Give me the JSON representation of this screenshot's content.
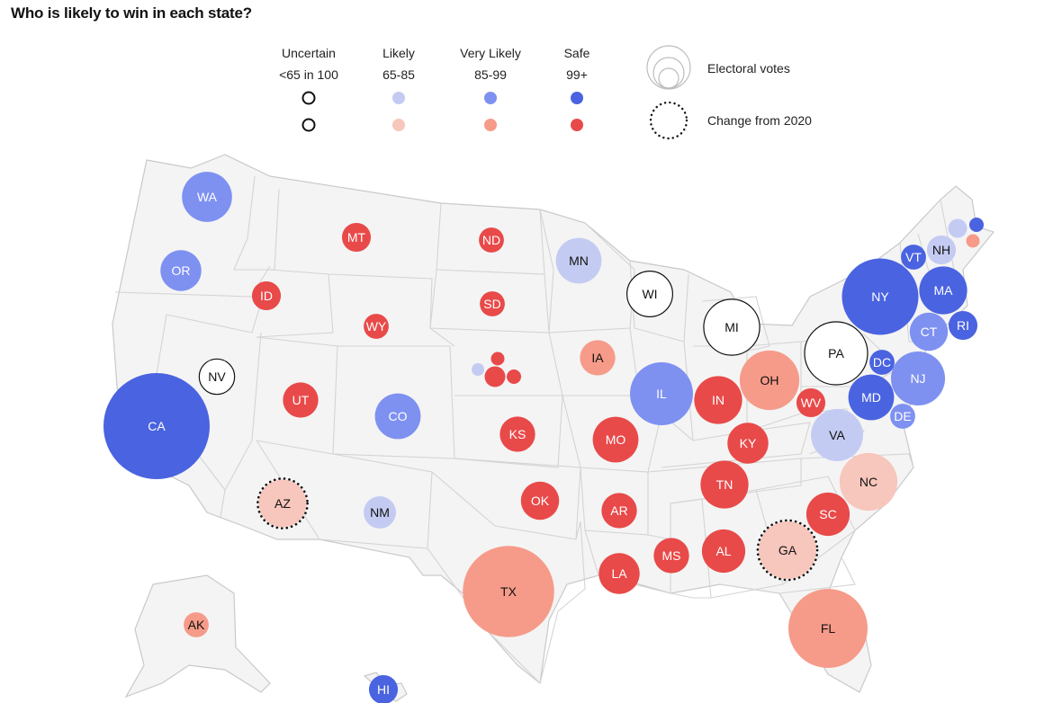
{
  "title": "Who is likely to win in each state?",
  "colors": {
    "background": "#ffffff",
    "land": "#f4f4f4",
    "border": "#c9c9c9",
    "uncertain_fill": "#ffffff",
    "uncertain_stroke": "#111111",
    "dem_likely": "#c4cbf3",
    "dem_very_likely": "#7e91f1",
    "dem_safe": "#4a63e0",
    "rep_likely": "#f7c6bc",
    "rep_very_likely": "#f69b89",
    "rep_safe": "#e84a49"
  },
  "legend": {
    "categories": [
      {
        "label": "Uncertain",
        "range": "<65 in 100",
        "dem_color": "uncertain",
        "rep_color": "uncertain"
      },
      {
        "label": "Likely",
        "range": "65-85",
        "dem_color": "dem_likely",
        "rep_color": "rep_likely"
      },
      {
        "label": "Very Likely",
        "range": "85-99",
        "dem_color": "dem_very_likely",
        "rep_color": "rep_very_likely"
      },
      {
        "label": "Safe",
        "range": "99+",
        "dem_color": "dem_safe",
        "rep_color": "rep_safe"
      }
    ],
    "electoral_votes_label": "Electoral votes",
    "change_label": "Change from 2020"
  },
  "states": [
    {
      "abbr": "WA",
      "rating": "dem_very_likely",
      "ev": 12,
      "changed": false
    },
    {
      "abbr": "OR",
      "rating": "dem_very_likely",
      "ev": 8,
      "changed": false
    },
    {
      "abbr": "CA",
      "rating": "dem_safe",
      "ev": 54,
      "changed": false
    },
    {
      "abbr": "NV",
      "rating": "uncertain",
      "ev": 6,
      "changed": false
    },
    {
      "abbr": "ID",
      "rating": "rep_safe",
      "ev": 4,
      "changed": false
    },
    {
      "abbr": "MT",
      "rating": "rep_safe",
      "ev": 4,
      "changed": false
    },
    {
      "abbr": "WY",
      "rating": "rep_safe",
      "ev": 3,
      "changed": false
    },
    {
      "abbr": "UT",
      "rating": "rep_safe",
      "ev": 6,
      "changed": false
    },
    {
      "abbr": "AZ",
      "rating": "rep_likely",
      "ev": 11,
      "changed": true
    },
    {
      "abbr": "CO",
      "rating": "dem_very_likely",
      "ev": 10,
      "changed": false
    },
    {
      "abbr": "NM",
      "rating": "dem_likely",
      "ev": 5,
      "changed": false
    },
    {
      "abbr": "ND",
      "rating": "rep_safe",
      "ev": 3,
      "changed": false
    },
    {
      "abbr": "SD",
      "rating": "rep_safe",
      "ev": 3,
      "changed": false
    },
    {
      "abbr": "KS",
      "rating": "rep_safe",
      "ev": 6,
      "changed": false
    },
    {
      "abbr": "OK",
      "rating": "rep_safe",
      "ev": 7,
      "changed": false
    },
    {
      "abbr": "TX",
      "rating": "rep_very_likely",
      "ev": 40,
      "changed": false
    },
    {
      "abbr": "MN",
      "rating": "dem_likely",
      "ev": 10,
      "changed": false
    },
    {
      "abbr": "IA",
      "rating": "rep_very_likely",
      "ev": 6,
      "changed": false
    },
    {
      "abbr": "MO",
      "rating": "rep_safe",
      "ev": 10,
      "changed": false
    },
    {
      "abbr": "AR",
      "rating": "rep_safe",
      "ev": 6,
      "changed": false
    },
    {
      "abbr": "LA",
      "rating": "rep_safe",
      "ev": 8,
      "changed": false
    },
    {
      "abbr": "WI",
      "rating": "uncertain",
      "ev": 10,
      "changed": false
    },
    {
      "abbr": "IL",
      "rating": "dem_very_likely",
      "ev": 19,
      "changed": false
    },
    {
      "abbr": "MI",
      "rating": "uncertain",
      "ev": 15,
      "changed": false
    },
    {
      "abbr": "IN",
      "rating": "rep_safe",
      "ev": 11,
      "changed": false
    },
    {
      "abbr": "OH",
      "rating": "rep_very_likely",
      "ev": 17,
      "changed": false
    },
    {
      "abbr": "KY",
      "rating": "rep_safe",
      "ev": 8,
      "changed": false
    },
    {
      "abbr": "TN",
      "rating": "rep_safe",
      "ev": 11,
      "changed": false
    },
    {
      "abbr": "MS",
      "rating": "rep_safe",
      "ev": 6,
      "changed": false
    },
    {
      "abbr": "AL",
      "rating": "rep_safe",
      "ev": 9,
      "changed": false
    },
    {
      "abbr": "GA",
      "rating": "rep_likely",
      "ev": 16,
      "changed": true
    },
    {
      "abbr": "FL",
      "rating": "rep_very_likely",
      "ev": 30,
      "changed": false
    },
    {
      "abbr": "SC",
      "rating": "rep_safe",
      "ev": 9,
      "changed": false
    },
    {
      "abbr": "NC",
      "rating": "rep_likely",
      "ev": 16,
      "changed": false
    },
    {
      "abbr": "VA",
      "rating": "dem_likely",
      "ev": 13,
      "changed": false
    },
    {
      "abbr": "WV",
      "rating": "rep_safe",
      "ev": 4,
      "changed": false
    },
    {
      "abbr": "PA",
      "rating": "uncertain",
      "ev": 19,
      "changed": false
    },
    {
      "abbr": "NY",
      "rating": "dem_safe",
      "ev": 28,
      "changed": false
    },
    {
      "abbr": "NJ",
      "rating": "dem_very_likely",
      "ev": 14,
      "changed": false
    },
    {
      "abbr": "DE",
      "rating": "dem_very_likely",
      "ev": 3,
      "changed": false
    },
    {
      "abbr": "MD",
      "rating": "dem_safe",
      "ev": 10,
      "changed": false
    },
    {
      "abbr": "DC",
      "rating": "dem_safe",
      "ev": 3,
      "changed": false
    },
    {
      "abbr": "CT",
      "rating": "dem_very_likely",
      "ev": 7,
      "changed": false
    },
    {
      "abbr": "RI",
      "rating": "dem_safe",
      "ev": 4,
      "changed": false
    },
    {
      "abbr": "MA",
      "rating": "dem_safe",
      "ev": 11,
      "changed": false
    },
    {
      "abbr": "VT",
      "rating": "dem_safe",
      "ev": 3,
      "changed": false
    },
    {
      "abbr": "NH",
      "rating": "dem_likely",
      "ev": 4,
      "changed": false
    },
    {
      "abbr": "AK",
      "rating": "rep_very_likely",
      "ev": 3,
      "changed": false
    },
    {
      "abbr": "HI",
      "rating": "dem_safe",
      "ev": 4,
      "changed": false
    }
  ],
  "district_splits": {
    "nebraska": [
      {
        "district": "NE-2",
        "rating": "dem_likely"
      },
      {
        "district": "NE-1",
        "rating": "rep_safe"
      },
      {
        "district": "NE-AL",
        "rating": "rep_safe"
      },
      {
        "district": "NE-3",
        "rating": "rep_safe"
      }
    ],
    "maine": [
      {
        "district": "ME-AL",
        "rating": "dem_likely"
      },
      {
        "district": "ME-1",
        "rating": "dem_safe"
      },
      {
        "district": "ME-2",
        "rating": "rep_very_likely"
      }
    ]
  }
}
